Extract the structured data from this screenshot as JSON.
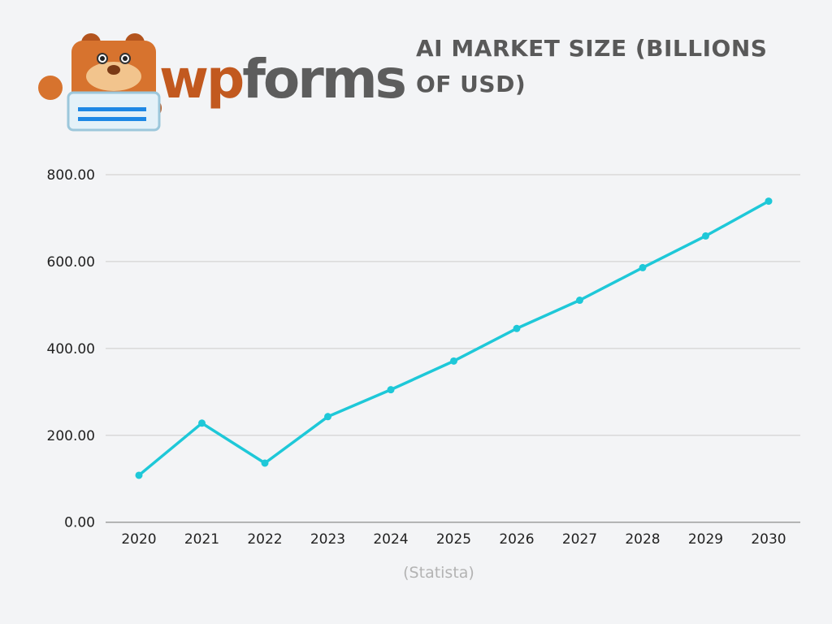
{
  "logo": {
    "text": "wpforms",
    "part1": "wp",
    "part2": "forms"
  },
  "chart_data": {
    "type": "line",
    "title": "AI MARKET SIZE (BILLIONS OF USD)",
    "source": "(Statista)",
    "categories": [
      "2020",
      "2021",
      "2022",
      "2023",
      "2024",
      "2025",
      "2026",
      "2027",
      "2028",
      "2029",
      "2030"
    ],
    "values": [
      108,
      228,
      136,
      243,
      305,
      371,
      446,
      511,
      586,
      659,
      739
    ],
    "ylim": [
      0,
      800
    ],
    "yticks": [
      0,
      200,
      400,
      600,
      800
    ],
    "ytick_labels": [
      "0.00",
      "200.00",
      "400.00",
      "600.00",
      "800.00"
    ],
    "grid": true,
    "line_color": "#1ec8d8",
    "grid_color": "#d9d9d9"
  }
}
